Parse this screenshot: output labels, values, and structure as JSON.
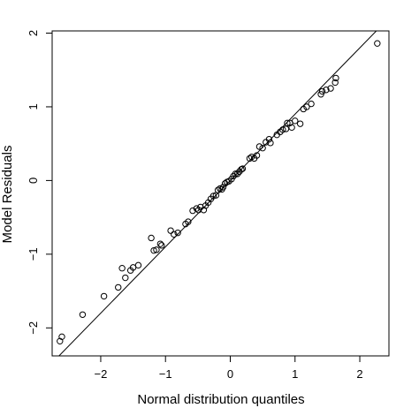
{
  "chart_data": {
    "type": "scatter",
    "title": "",
    "xlabel": "Normal distribution quantiles",
    "ylabel": "Model Residuals",
    "xlim": [
      -2.75,
      2.45
    ],
    "ylim": [
      -2.38,
      2.03
    ],
    "x_ticks": [
      -2,
      -1,
      0,
      1,
      2
    ],
    "y_ticks": [
      -2,
      -1,
      0,
      1,
      2
    ],
    "x_tick_labels": [
      "−2",
      "−1",
      "0",
      "1",
      "2"
    ],
    "y_tick_labels": [
      "−2",
      "−1",
      "0",
      "1",
      "2"
    ],
    "grid": false,
    "reference_line": {
      "intercept": 0.0,
      "slope": 0.9
    },
    "points": [
      [
        -2.63,
        -2.18
      ],
      [
        -2.6,
        -2.12
      ],
      [
        -2.28,
        -1.82
      ],
      [
        -1.95,
        -1.57
      ],
      [
        -1.73,
        -1.45
      ],
      [
        -1.67,
        -1.19
      ],
      [
        -1.62,
        -1.32
      ],
      [
        -1.54,
        -1.22
      ],
      [
        -1.5,
        -1.18
      ],
      [
        -1.42,
        -1.15
      ],
      [
        -1.22,
        -0.78
      ],
      [
        -1.18,
        -0.95
      ],
      [
        -1.14,
        -0.94
      ],
      [
        -1.08,
        -0.86
      ],
      [
        -1.06,
        -0.88
      ],
      [
        -0.92,
        -0.68
      ],
      [
        -0.87,
        -0.73
      ],
      [
        -0.81,
        -0.71
      ],
      [
        -0.69,
        -0.59
      ],
      [
        -0.65,
        -0.56
      ],
      [
        -0.58,
        -0.41
      ],
      [
        -0.52,
        -0.38
      ],
      [
        -0.49,
        -0.4
      ],
      [
        -0.46,
        -0.36
      ],
      [
        -0.41,
        -0.4
      ],
      [
        -0.38,
        -0.34
      ],
      [
        -0.34,
        -0.3
      ],
      [
        -0.3,
        -0.25
      ],
      [
        -0.26,
        -0.21
      ],
      [
        -0.22,
        -0.2
      ],
      [
        -0.19,
        -0.13
      ],
      [
        -0.16,
        -0.11
      ],
      [
        -0.13,
        -0.12
      ],
      [
        -0.11,
        -0.09
      ],
      [
        -0.08,
        -0.04
      ],
      [
        -0.05,
        -0.02
      ],
      [
        -0.02,
        -0.01
      ],
      [
        0.02,
        0.02
      ],
      [
        0.05,
        0.06
      ],
      [
        0.08,
        0.09
      ],
      [
        0.11,
        0.09
      ],
      [
        0.14,
        0.12
      ],
      [
        0.17,
        0.15
      ],
      [
        0.19,
        0.16
      ],
      [
        0.3,
        0.3
      ],
      [
        0.33,
        0.32
      ],
      [
        0.37,
        0.3
      ],
      [
        0.41,
        0.34
      ],
      [
        0.45,
        0.46
      ],
      [
        0.5,
        0.44
      ],
      [
        0.55,
        0.52
      ],
      [
        0.6,
        0.56
      ],
      [
        0.62,
        0.51
      ],
      [
        0.72,
        0.62
      ],
      [
        0.77,
        0.66
      ],
      [
        0.81,
        0.69
      ],
      [
        0.86,
        0.7
      ],
      [
        0.88,
        0.78
      ],
      [
        0.92,
        0.78
      ],
      [
        0.95,
        0.72
      ],
      [
        1.0,
        0.81
      ],
      [
        1.08,
        0.77
      ],
      [
        1.13,
        0.97
      ],
      [
        1.18,
        1.0
      ],
      [
        1.25,
        1.04
      ],
      [
        1.4,
        1.17
      ],
      [
        1.42,
        1.21
      ],
      [
        1.48,
        1.23
      ],
      [
        1.55,
        1.25
      ],
      [
        1.62,
        1.33
      ],
      [
        1.63,
        1.39
      ],
      [
        2.27,
        1.86
      ]
    ]
  }
}
